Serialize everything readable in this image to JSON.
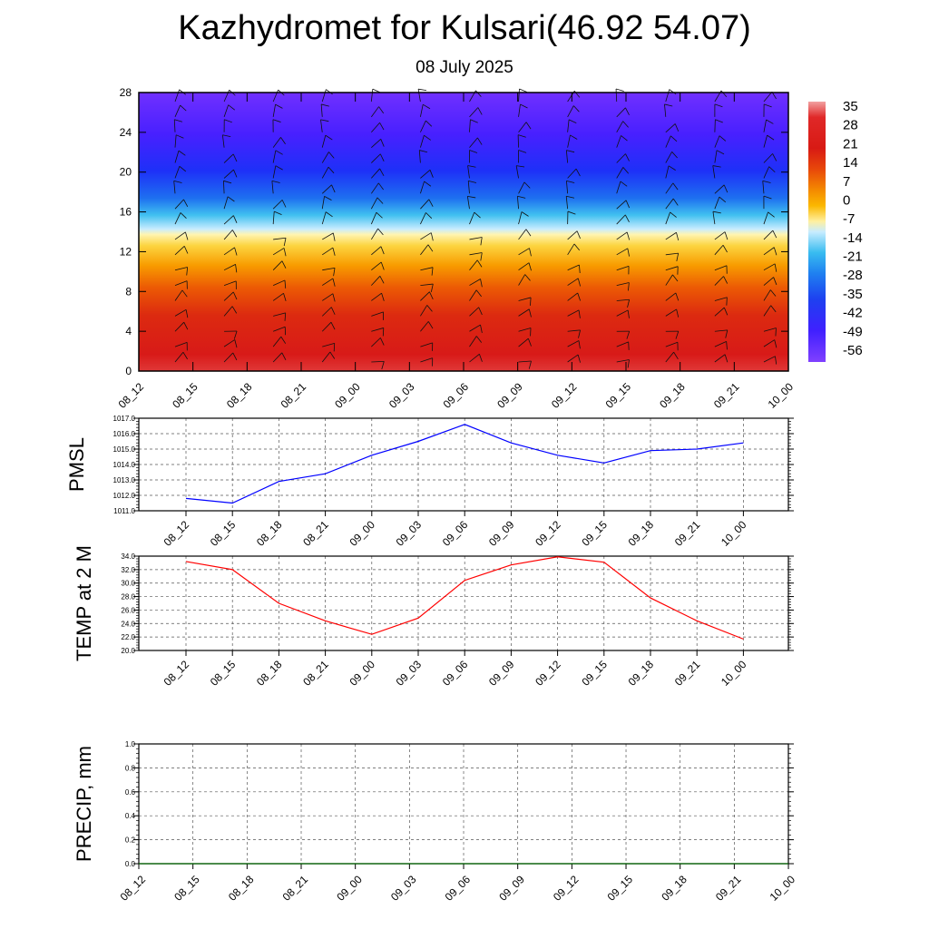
{
  "page": {
    "title": "Kazhydromet for Kulsari(46.92 54.07)",
    "subtitle": "08 July 2025"
  },
  "chart_data": [
    {
      "type": "heatmap",
      "panel": "cross-section",
      "xlabel": "",
      "ylabel": "",
      "x_ticks": [
        "08_12",
        "08_15",
        "08_18",
        "08_21",
        "09_00",
        "09_03",
        "09_06",
        "09_09",
        "09_12",
        "09_15",
        "09_18",
        "09_21",
        "10_00"
      ],
      "y_ticks": [
        0,
        4,
        8,
        12,
        16,
        20,
        24,
        28
      ],
      "ylim": [
        0,
        28
      ],
      "colorbar_labels": [
        "35",
        "28",
        "21",
        "14",
        "7",
        "0",
        "-7",
        "-14",
        "-21",
        "-28",
        "-35",
        "-42",
        "-49",
        "-56"
      ],
      "colorbar_colors": [
        "#ef8a8a",
        "#d71818",
        "#e23a0c",
        "#f06a00",
        "#f8a400",
        "#fcc400",
        "#fff3a0",
        "#b8e8ff",
        "#30b8f0",
        "#2080f0",
        "#1e40f0",
        "#3c20ff",
        "#5a10ff",
        "#7a3cff"
      ],
      "temperature_profile": [
        {
          "height": 0,
          "value": 32
        },
        {
          "height": 4,
          "value": 30
        },
        {
          "height": 8,
          "value": 21
        },
        {
          "height": 12,
          "value": 2
        },
        {
          "height": 14,
          "value": -10
        },
        {
          "height": 16,
          "value": -30
        },
        {
          "height": 20,
          "value": -45
        },
        {
          "height": 24,
          "value": -53
        },
        {
          "height": 28,
          "value": -60
        }
      ],
      "wind_barbs": true,
      "grid": false
    },
    {
      "type": "line",
      "panel": "PMSL",
      "ylabel": "PMSL",
      "x": [
        "08_12",
        "08_15",
        "08_18",
        "08_21",
        "09_00",
        "09_03",
        "09_06",
        "09_09",
        "09_12",
        "09_15",
        "09_18",
        "09_21",
        "10_00"
      ],
      "y_ticks": [
        "1011.0",
        "1012.0",
        "1013.0",
        "1014.0",
        "1015.0",
        "1016.0",
        "1017.0"
      ],
      "ylim": [
        1011.0,
        1017.0
      ],
      "series": [
        {
          "color": "#0000ff",
          "values": [
            1011.8,
            1011.5,
            1012.9,
            1013.4,
            1014.6,
            1015.5,
            1016.6,
            1015.4,
            1014.6,
            1014.1,
            1014.9,
            1015.0,
            1015.4
          ]
        }
      ],
      "grid": true
    },
    {
      "type": "line",
      "panel": "TEMP",
      "ylabel": "TEMP at 2 M",
      "x": [
        "08_12",
        "08_15",
        "08_18",
        "08_21",
        "09_00",
        "09_03",
        "09_06",
        "09_09",
        "09_12",
        "09_15",
        "09_18",
        "09_21",
        "10_00"
      ],
      "y_ticks": [
        "20.0",
        "22.0",
        "24.0",
        "26.0",
        "28.0",
        "30.0",
        "32.0",
        "34.0"
      ],
      "ylim": [
        20.0,
        34.0
      ],
      "series": [
        {
          "color": "#ff0000",
          "values": [
            33.2,
            32.0,
            27.0,
            24.4,
            22.4,
            24.8,
            30.4,
            32.7,
            33.9,
            33.1,
            27.8,
            24.4,
            21.7
          ]
        }
      ],
      "grid": true
    },
    {
      "type": "line",
      "panel": "PRECIP",
      "ylabel": "PRECIP, mm",
      "x": [
        "08_12",
        "08_15",
        "08_18",
        "08_21",
        "09_00",
        "09_03",
        "09_06",
        "09_09",
        "09_12",
        "09_15",
        "09_18",
        "09_21",
        "10_00"
      ],
      "y_ticks": [
        "0.0",
        "0.2",
        "0.4",
        "0.6",
        "0.8",
        "1.0"
      ],
      "ylim": [
        0.0,
        1.0
      ],
      "series": [
        {
          "color": "#006400",
          "values": [
            0,
            0,
            0,
            0,
            0,
            0,
            0,
            0,
            0,
            0,
            0,
            0,
            0
          ]
        }
      ],
      "grid": true
    }
  ]
}
